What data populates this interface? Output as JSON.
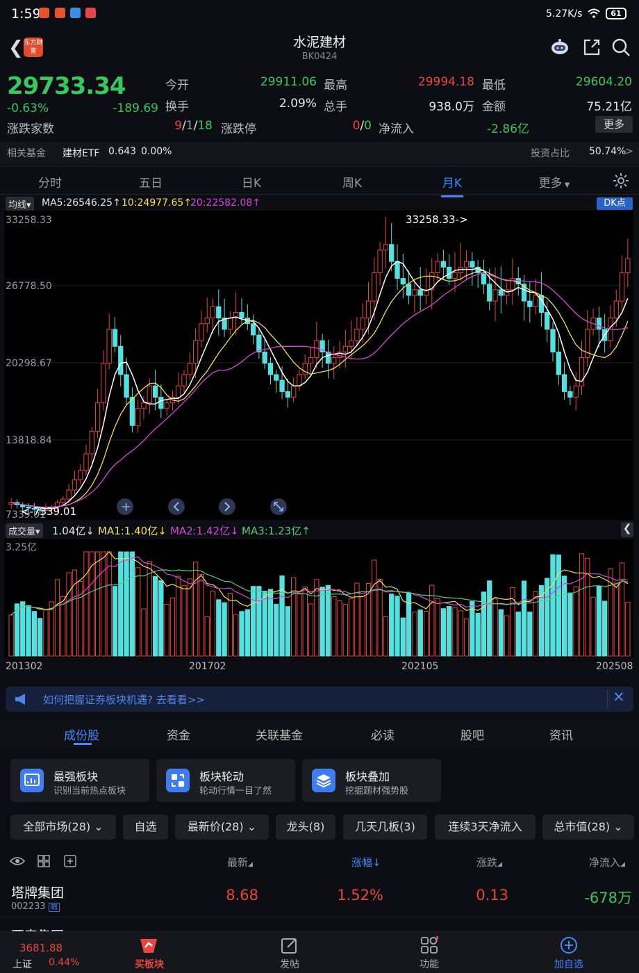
{
  "status_bar": {
    "time": "1:59",
    "net_speed": "5.27K/s",
    "battery": "61"
  },
  "header": {
    "logo_text": "东方财富",
    "title": "水泥建材",
    "code": "BK0424"
  },
  "quote": {
    "price": "29733.34",
    "change_pct": "-0.63%",
    "change": "-189.69",
    "fields": [
      {
        "label": "今开",
        "value": "29911.06",
        "color": "green"
      },
      {
        "label": "最高",
        "value": "29994.18",
        "color": "red"
      },
      {
        "label": "最低",
        "value": "29604.20",
        "color": "green"
      },
      {
        "label": "换手",
        "value": "2.09%",
        "color": "white"
      },
      {
        "label": "总手",
        "value": "938.0万",
        "color": "white"
      },
      {
        "label": "金额",
        "value": "75.21亿",
        "color": "white"
      }
    ],
    "updown_label": "涨跌家数",
    "updown_red": "9",
    "updown_sep1": "/",
    "updown_flat": "1",
    "updown_sep2": "/",
    "updown_green": "18",
    "limit_label": "涨跌停",
    "limit_red": "0",
    "limit_sep": "/",
    "limit_green": "0",
    "netflow_label": "净流入",
    "netflow_value": "-2.86亿",
    "more": "更多"
  },
  "fund_row": {
    "label": "相关基金",
    "name": "建材ETF",
    "price": "0.643",
    "pct": "0.00%",
    "ratio_label": "投资占比",
    "ratio_value": "50.74%",
    "arrow": ">"
  },
  "tabs": [
    "分时",
    "五日",
    "日K",
    "周K",
    "月K",
    "更多"
  ],
  "active_tab": 4,
  "ma_legend": {
    "btn": "均线",
    "ma5": "MA5:26546.25",
    "ma10": "10:24977.65",
    "ma20": "20:22582.08",
    "dk": "DK点"
  },
  "kchart": {
    "y_labels": [
      "33258.33",
      "26778.50",
      "20298.67",
      "13818.84",
      "7339.01"
    ],
    "high_mark": "33258.33->",
    "low_mark": "<-7339.01"
  },
  "vol_legend": {
    "btn": "成交量",
    "vol": "1.04亿",
    "ma1": "MA1:1.40亿",
    "ma2": "MA2:1.42亿",
    "ma3": "MA3:1.23亿",
    "max": "3.25亿"
  },
  "x_labels": [
    "201302",
    "201702",
    "202105",
    "202508"
  ],
  "banner": {
    "text": "如何把握证券板块机遇? 去看看>>"
  },
  "sub_tabs": [
    "成份股",
    "资金",
    "关联基金",
    "必读",
    "股吧",
    "资讯"
  ],
  "cards": [
    {
      "title": "最强板块",
      "desc": "识别当前热点板块"
    },
    {
      "title": "板块轮动",
      "desc": "轮动行情一目了然"
    },
    {
      "title": "板块叠加",
      "desc": "挖掘题材强势股"
    }
  ],
  "filters": [
    "全部市场(28)",
    "自选",
    "最新价(28)",
    "龙头(8)",
    "几天几板(3)",
    "连续3天净流入",
    "总市值(28)"
  ],
  "table_head": {
    "latest": "最新",
    "pct": "涨幅",
    "change": "涨跌",
    "flow": "净流入"
  },
  "rows": [
    {
      "name": "塔牌集团",
      "code": "002233",
      "tag": "融",
      "price": "8.68",
      "pct": "1.52%",
      "chg": "0.13",
      "flow": "-678万"
    },
    {
      "name": "亚泰集团",
      "code": "",
      "tag": "",
      "price": "",
      "pct": "",
      "chg": "",
      "flow": ""
    }
  ],
  "bottom_bar": {
    "index_value": "3681.88",
    "index_name": "上证",
    "index_pct": "0.44%",
    "items": [
      "买板块",
      "发帖",
      "功能",
      "加自选"
    ]
  },
  "colors": {
    "up": "#e8473e",
    "down": "#35c760",
    "accent": "#3d8bff",
    "bg": "#0d0e13"
  },
  "chart_data": {
    "type": "candlestick",
    "ylim": [
      7339.01,
      33258.33
    ],
    "close_series": [
      8200,
      8000,
      7800,
      7700,
      7600,
      7500,
      7700,
      7800,
      8200,
      8500,
      9300,
      10200,
      11000,
      12500,
      14500,
      17000,
      20500,
      23500,
      22000,
      19500,
      17500,
      15000,
      16500,
      17000,
      18500,
      17500,
      16500,
      17000,
      17500,
      18500,
      19500,
      20500,
      22500,
      24000,
      24500,
      25500,
      24500,
      23500,
      24500,
      25000,
      24500,
      24000,
      23000,
      21500,
      20500,
      19500,
      19000,
      18000,
      17500,
      18500,
      19500,
      20500,
      21000,
      22500,
      21500,
      20500,
      21000,
      21500,
      22000,
      22500,
      23500,
      24500,
      26000,
      28500,
      30500,
      31000,
      29500,
      28000,
      27500,
      26500,
      27000,
      26500,
      27000,
      28500,
      29500,
      29000,
      28000,
      28500,
      29000,
      29500,
      29000,
      28500,
      27500,
      26000,
      27000,
      26500,
      27000,
      28000,
      27500,
      26000,
      25500,
      26500,
      25000,
      23500,
      21500,
      19500,
      18000,
      17500,
      18500,
      21000,
      23500,
      24500,
      23500,
      22500,
      24500,
      26000,
      28500,
      29733
    ]
  }
}
